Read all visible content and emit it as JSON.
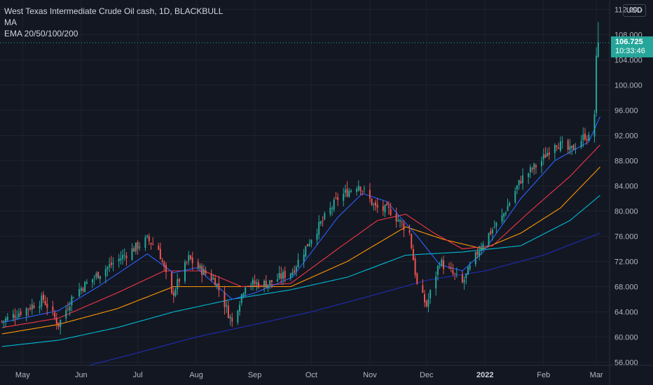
{
  "legend": {
    "title": "West Texas Intermediate Crude Oil cash, 1D, BLACKBULL",
    "line2": "MA",
    "line3": "EMA 20/50/100/200"
  },
  "currency": "USD",
  "last_price": {
    "value": "106.725",
    "countdown": "10:33:46",
    "price": 106.725
  },
  "colors": {
    "background": "#131722",
    "grid": "#1e222d",
    "up": "#26a69a",
    "down": "#ef5350",
    "ema20": "#2962ff",
    "ema50": "#f23645",
    "ema100": "#ff9800",
    "ema200": "#00bcd4",
    "ma": "#1e2db5"
  },
  "chart_data": {
    "type": "candlestick",
    "y_ticks": [
      "56.000",
      "60.000",
      "64.000",
      "68.000",
      "72.000",
      "76.000",
      "80.000",
      "84.000",
      "88.000",
      "92.000",
      "96.000",
      "100.000",
      "104.000",
      "108.000",
      "112.000"
    ],
    "ylim": [
      55.5,
      113.5
    ],
    "x_ticks": [
      "May",
      "Jun",
      "Jul",
      "Aug",
      "Sep",
      "Oct",
      "Nov",
      "Dec",
      "2022",
      "Feb",
      "Mar"
    ],
    "x_tick_dates": [
      "2021-05-01",
      "2021-06-01",
      "2021-07-01",
      "2021-08-01",
      "2021-09-01",
      "2021-10-01",
      "2021-11-01",
      "2021-12-01",
      "2022-01-01",
      "2022-02-01",
      "2022-03-01"
    ],
    "xlim": [
      "2021-04-19",
      "2022-03-08"
    ],
    "close_anchors": [
      [
        "2021-04-20",
        62.5
      ],
      [
        "2021-05-03",
        64.5
      ],
      [
        "2021-05-12",
        66.0
      ],
      [
        "2021-05-20",
        62.0
      ],
      [
        "2021-05-28",
        66.8
      ],
      [
        "2021-06-10",
        70.0
      ],
      [
        "2021-06-24",
        73.0
      ],
      [
        "2021-07-06",
        75.5
      ],
      [
        "2021-07-12",
        74.0
      ],
      [
        "2021-07-19",
        66.5
      ],
      [
        "2021-07-28",
        72.5
      ],
      [
        "2021-08-02",
        71.0
      ],
      [
        "2021-08-11",
        69.0
      ],
      [
        "2021-08-20",
        62.3
      ],
      [
        "2021-08-27",
        68.5
      ],
      [
        "2021-09-08",
        68.5
      ],
      [
        "2021-09-21",
        70.5
      ],
      [
        "2021-10-01",
        75.8
      ],
      [
        "2021-10-15",
        82.0
      ],
      [
        "2021-10-26",
        84.3
      ],
      [
        "2021-11-04",
        80.5
      ],
      [
        "2021-11-12",
        80.0
      ],
      [
        "2021-11-22",
        76.5
      ],
      [
        "2021-11-26",
        68.2
      ],
      [
        "2021-12-01",
        65.0
      ],
      [
        "2021-12-08",
        72.0
      ],
      [
        "2021-12-20",
        68.5
      ],
      [
        "2021-12-31",
        75.2
      ],
      [
        "2022-01-10",
        79.0
      ],
      [
        "2022-01-20",
        85.0
      ],
      [
        "2022-01-31",
        88.0
      ],
      [
        "2022-02-07",
        91.0
      ],
      [
        "2022-02-15",
        89.5
      ],
      [
        "2022-02-23",
        92.0
      ],
      [
        "2022-02-25",
        91.5
      ],
      [
        "2022-02-28",
        95.5
      ],
      [
        "2022-03-01",
        104.0
      ],
      [
        "2022-03-02",
        106.7
      ]
    ],
    "ema20_anchors": [
      [
        "2021-04-20",
        62.3
      ],
      [
        "2021-05-20",
        64.2
      ],
      [
        "2021-06-10",
        68.0
      ],
      [
        "2021-07-06",
        73.2
      ],
      [
        "2021-07-20",
        70.2
      ],
      [
        "2021-08-01",
        71.0
      ],
      [
        "2021-08-20",
        66.0
      ],
      [
        "2021-09-01",
        67.0
      ],
      [
        "2021-09-21",
        69.5
      ],
      [
        "2021-10-15",
        79.0
      ],
      [
        "2021-10-28",
        82.8
      ],
      [
        "2021-11-10",
        81.5
      ],
      [
        "2021-11-26",
        76.0
      ],
      [
        "2021-12-08",
        71.5
      ],
      [
        "2021-12-20",
        70.5
      ],
      [
        "2021-12-31",
        73.5
      ],
      [
        "2022-01-20",
        82.0
      ],
      [
        "2022-02-07",
        88.0
      ],
      [
        "2022-02-25",
        91.0
      ],
      [
        "2022-03-03",
        95.0
      ]
    ],
    "ema50_anchors": [
      [
        "2021-04-20",
        61.5
      ],
      [
        "2021-05-20",
        63.0
      ],
      [
        "2021-06-20",
        67.0
      ],
      [
        "2021-07-15",
        70.5
      ],
      [
        "2021-08-05",
        70.5
      ],
      [
        "2021-08-25",
        68.0
      ],
      [
        "2021-09-20",
        68.5
      ],
      [
        "2021-10-15",
        74.0
      ],
      [
        "2021-11-05",
        78.5
      ],
      [
        "2021-11-20",
        79.5
      ],
      [
        "2021-12-05",
        76.5
      ],
      [
        "2021-12-20",
        74.0
      ],
      [
        "2022-01-05",
        74.5
      ],
      [
        "2022-01-25",
        80.0
      ],
      [
        "2022-02-15",
        85.5
      ],
      [
        "2022-03-03",
        90.5
      ]
    ],
    "ema100_anchors": [
      [
        "2021-04-20",
        60.5
      ],
      [
        "2021-05-20",
        62.0
      ],
      [
        "2021-06-20",
        64.5
      ],
      [
        "2021-07-20",
        68.0
      ],
      [
        "2021-08-20",
        68.0
      ],
      [
        "2021-09-20",
        68.0
      ],
      [
        "2021-10-20",
        72.0
      ],
      [
        "2021-11-20",
        77.5
      ],
      [
        "2021-12-10",
        75.5
      ],
      [
        "2021-12-31",
        74.0
      ],
      [
        "2022-01-20",
        76.5
      ],
      [
        "2022-02-10",
        80.5
      ],
      [
        "2022-03-03",
        87.0
      ]
    ],
    "ema200_anchors": [
      [
        "2021-04-20",
        58.5
      ],
      [
        "2021-05-20",
        59.5
      ],
      [
        "2021-06-20",
        61.5
      ],
      [
        "2021-07-20",
        64.0
      ],
      [
        "2021-08-20",
        66.0
      ],
      [
        "2021-09-20",
        67.5
      ],
      [
        "2021-10-20",
        69.5
      ],
      [
        "2021-11-20",
        73.0
      ],
      [
        "2021-12-20",
        73.5
      ],
      [
        "2022-01-20",
        74.5
      ],
      [
        "2022-02-15",
        78.5
      ],
      [
        "2022-03-03",
        82.5
      ]
    ],
    "ma_anchors": [
      [
        "2021-06-05",
        55.5
      ],
      [
        "2021-07-01",
        57.5
      ],
      [
        "2021-08-01",
        60.0
      ],
      [
        "2021-09-01",
        62.0
      ],
      [
        "2021-10-01",
        64.0
      ],
      [
        "2021-11-01",
        66.5
      ],
      [
        "2021-12-01",
        69.0
      ],
      [
        "2022-01-01",
        70.5
      ],
      [
        "2022-02-01",
        73.0
      ],
      [
        "2022-03-03",
        76.5
      ]
    ]
  }
}
